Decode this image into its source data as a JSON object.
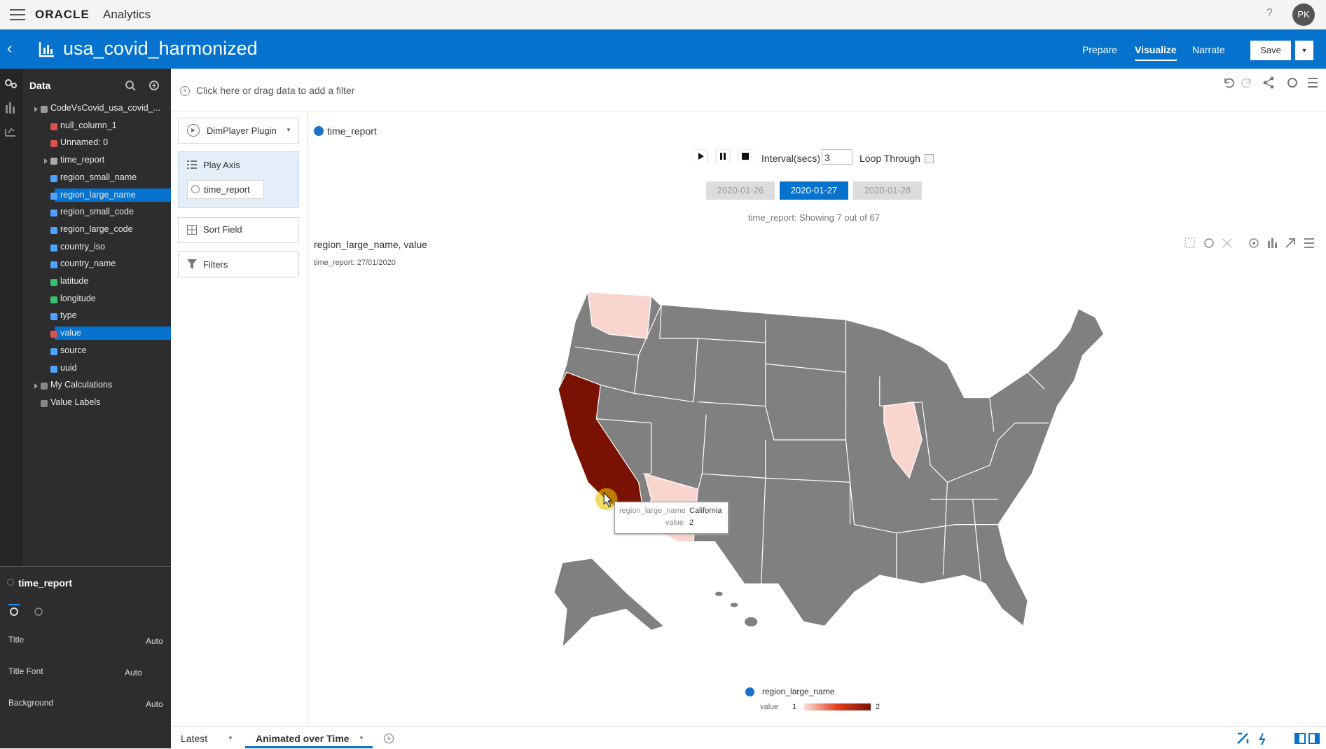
{
  "header": {
    "brand": "ORACLE",
    "app": "Analytics",
    "user": "PK",
    "title": "usa_covid_harmonized",
    "nav": [
      "Prepare",
      "Visualize",
      "Narrate"
    ],
    "save": "Save"
  },
  "sidebar": {
    "heading": "Data",
    "tree": [
      "CodeVsCovid_usa_covid_...",
      "null_column_1",
      "Unnamed: 0",
      "time_report",
      "region_small_name",
      "region_large_name",
      "region_small_code",
      "region_large_code",
      "country_iso",
      "country_name",
      "latitude",
      "longitude",
      "type",
      "value",
      "source",
      "uuid",
      "My Calculations",
      "Value Labels"
    ],
    "properties": {
      "title": "time_report",
      "rows": [
        {
          "label": "Title",
          "value": "Auto"
        },
        {
          "label": "Title Font",
          "value": "Auto"
        },
        {
          "label": "Background",
          "value": "Auto"
        }
      ]
    }
  },
  "filter_bar": {
    "placeholder": "Click here or drag data to add a filter"
  },
  "grammar": {
    "plugin": "DimPlayer Plugin",
    "play_axis": {
      "label": "Play Axis",
      "field": "time_report"
    },
    "sort_field": "Sort Field",
    "filters": "Filters"
  },
  "canvas": {
    "field": "time_report",
    "interval_label": "Interval(secs)",
    "interval_value": 3,
    "loop_label": "Loop Through",
    "dates": [
      "2020-01-26",
      "2020-01-27",
      "2020-01-28"
    ],
    "active_date": 1,
    "status": "time_report: Showing 7 out of 67",
    "viz": {
      "title": "region_large_name, value",
      "subtitle_label": "time_report:",
      "subtitle_value": "27/01/2020",
      "tooltip": {
        "field_label": "region_large_name",
        "field_value": "California",
        "value_label": "value",
        "value": 2
      },
      "legend": {
        "title": "region_large_name",
        "label": "value",
        "min": 1,
        "max": 2
      }
    }
  },
  "tabs": [
    "Latest",
    "Animated over Time"
  ]
}
